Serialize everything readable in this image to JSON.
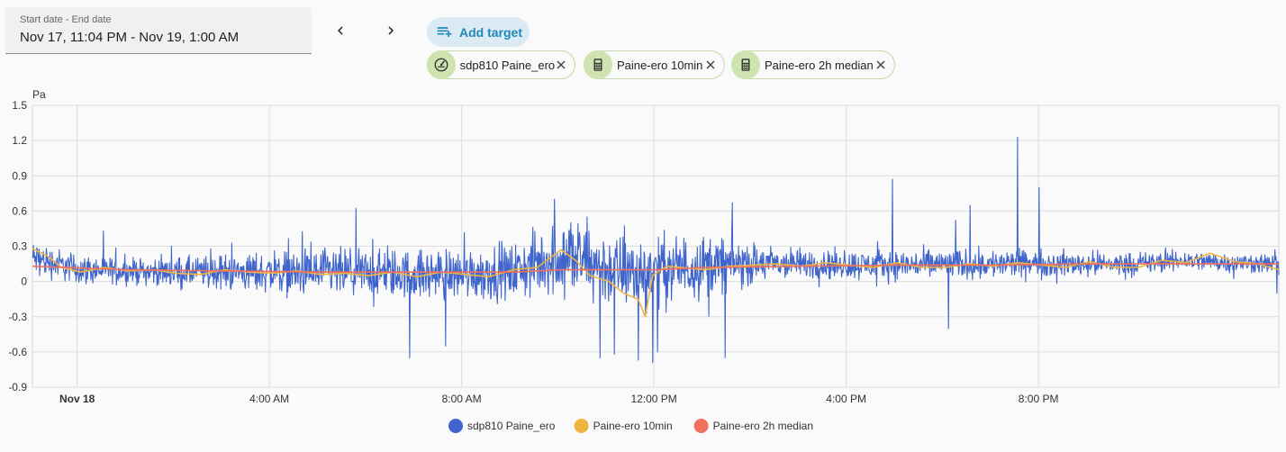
{
  "date_range": {
    "label": "Start date - End date",
    "value": "Nov 17, 11:04 PM - Nov 19, 1:00 AM"
  },
  "nav": {
    "prev_icon": "chevron-left-icon",
    "next_icon": "chevron-right-icon"
  },
  "add_target": {
    "label": "Add target",
    "icon": "playlist-add-icon"
  },
  "targets": [
    {
      "label": "sdp810 Paine_ero",
      "icon": "gauge-icon"
    },
    {
      "label": "Paine-ero 10min",
      "icon": "calculator-icon"
    },
    {
      "label": "Paine-ero 2h median",
      "icon": "calculator-icon"
    }
  ],
  "colors": {
    "accent": "#1e88b8",
    "chip_icon_bg": "#cfe3b0"
  },
  "chart_data": {
    "type": "line",
    "ylabel": "Pa",
    "ylim": [
      -0.9,
      1.5
    ],
    "yticks": [
      1.5,
      1.2,
      0.9,
      0.6,
      0.3,
      0,
      -0.3,
      -0.6,
      -0.9
    ],
    "ytick_labels": [
      "1.5",
      "1.2",
      "0.9",
      "0.6",
      "0.3",
      "0",
      "-0.3",
      "-0.6",
      "-0.9"
    ],
    "x_unit": "hours since Nov 17, 11:04 PM",
    "xlim": [
      0,
      25.93
    ],
    "xticks": [
      {
        "x": 0.93,
        "label": "Nov 18",
        "bold": true
      },
      {
        "x": 4.93,
        "label": "4:00 AM",
        "bold": false
      },
      {
        "x": 8.93,
        "label": "8:00 AM",
        "bold": false
      },
      {
        "x": 12.93,
        "label": "12:00 PM",
        "bold": false
      },
      {
        "x": 16.93,
        "label": "4:00 PM",
        "bold": false
      },
      {
        "x": 20.93,
        "label": "8:00 PM",
        "bold": false
      }
    ],
    "grid": true,
    "legend_position": "bottom-center",
    "series": [
      {
        "name": "sdp810 Paine_ero",
        "color": "#3f65cc",
        "kind": "noisy",
        "baseline_x": [
          0,
          1,
          2,
          3,
          4,
          5,
          6,
          7,
          8,
          9,
          10,
          11,
          12,
          12.5,
          13,
          14,
          15,
          16,
          17,
          18,
          19,
          20,
          21,
          22,
          23,
          24,
          25,
          25.93
        ],
        "baseline_y": [
          0.2,
          0.1,
          0.09,
          0.08,
          0.08,
          0.08,
          0.07,
          0.07,
          0.06,
          0.07,
          0.08,
          0.22,
          0.1,
          0.08,
          0.1,
          0.14,
          0.15,
          0.15,
          0.14,
          0.14,
          0.15,
          0.15,
          0.15,
          0.15,
          0.15,
          0.18,
          0.16,
          0.15
        ],
        "amplitude_x": [
          0,
          2,
          4,
          6,
          8,
          10,
          11,
          12,
          13,
          14,
          15,
          16,
          18,
          20,
          22,
          24,
          25.93
        ],
        "amplitude_y": [
          0.07,
          0.05,
          0.07,
          0.1,
          0.1,
          0.11,
          0.16,
          0.15,
          0.14,
          0.13,
          0.08,
          0.06,
          0.06,
          0.06,
          0.05,
          0.04,
          0.04
        ],
        "spikes": [
          {
            "x": 7.85,
            "y": -0.65
          },
          {
            "x": 8.6,
            "y": -0.55
          },
          {
            "x": 12.6,
            "y": -0.67
          },
          {
            "x": 12.9,
            "y": -0.69
          },
          {
            "x": 12.75,
            "y": -0.3
          },
          {
            "x": 13.0,
            "y": -0.6
          },
          {
            "x": 12.1,
            "y": -0.62
          },
          {
            "x": 11.8,
            "y": -0.65
          },
          {
            "x": 14.4,
            "y": -0.65
          },
          {
            "x": 11.55,
            "y": 0.55
          },
          {
            "x": 11.2,
            "y": 0.5
          },
          {
            "x": 14.55,
            "y": 0.67
          },
          {
            "x": 17.9,
            "y": 0.87
          },
          {
            "x": 20.5,
            "y": 1.23
          },
          {
            "x": 20.95,
            "y": 0.8
          },
          {
            "x": 19.5,
            "y": 0.65
          },
          {
            "x": 19.2,
            "y": 0.52
          },
          {
            "x": 19.05,
            "y": -0.4
          },
          {
            "x": 25.9,
            "y": -0.1
          }
        ]
      },
      {
        "name": "Paine-ero 10min",
        "color": "#f0b440",
        "kind": "line",
        "x": [
          0,
          0.3,
          0.6,
          1,
          1.5,
          2,
          2.5,
          3,
          3.5,
          4,
          4.5,
          5,
          5.5,
          6,
          6.5,
          7,
          7.5,
          8,
          8.5,
          9,
          9.5,
          10,
          10.5,
          11,
          11.3,
          11.6,
          12,
          12.3,
          12.6,
          12.75,
          12.9,
          13.2,
          13.5,
          14,
          14.5,
          15,
          15.5,
          16,
          16.5,
          17,
          17.5,
          18,
          18.5,
          19,
          19.5,
          20,
          20.5,
          21,
          21.5,
          22,
          22.5,
          23,
          23.5,
          24,
          24.5,
          25,
          25.5,
          25.93
        ],
        "y": [
          0.28,
          0.22,
          0.12,
          0.08,
          0.12,
          0.09,
          0.1,
          0.07,
          0.06,
          0.1,
          0.08,
          0.07,
          0.09,
          0.06,
          0.07,
          0.05,
          0.08,
          0.04,
          0.08,
          0.06,
          0.04,
          0.1,
          0.12,
          0.27,
          0.18,
          0.05,
          0.0,
          -0.1,
          -0.15,
          -0.3,
          0.05,
          0.13,
          0.12,
          0.1,
          0.13,
          0.14,
          0.15,
          0.13,
          0.16,
          0.14,
          0.12,
          0.16,
          0.12,
          0.12,
          0.15,
          0.13,
          0.16,
          0.14,
          0.12,
          0.17,
          0.12,
          0.12,
          0.18,
          0.16,
          0.24,
          0.17,
          0.15,
          0.1
        ]
      },
      {
        "name": "Paine-ero 2h median",
        "color": "#f0705e",
        "kind": "line",
        "x": [
          0,
          2,
          4,
          6,
          8,
          10,
          11,
          12,
          13,
          14,
          16,
          18,
          20,
          22,
          24,
          25.93
        ],
        "y": [
          0.13,
          0.1,
          0.09,
          0.08,
          0.08,
          0.08,
          0.1,
          0.1,
          0.1,
          0.12,
          0.13,
          0.14,
          0.14,
          0.15,
          0.15,
          0.15
        ]
      }
    ]
  }
}
